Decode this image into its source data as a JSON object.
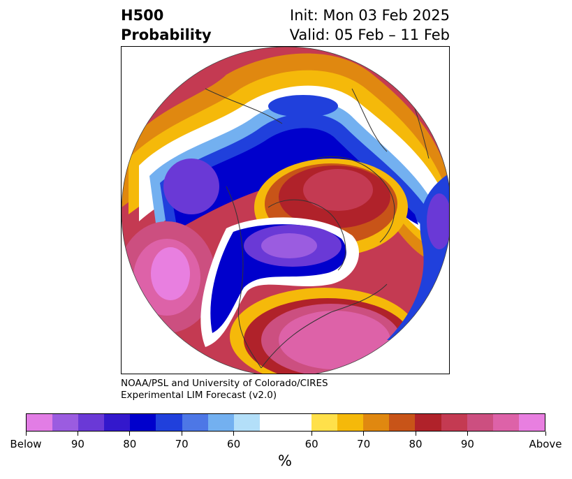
{
  "title": {
    "variable": "H500",
    "product": "Probability",
    "init": "Init: Mon 03 Feb 2025",
    "valid": "Valid: 05 Feb – 11 Feb"
  },
  "credit": {
    "line1": "NOAA/PSL and University of Colorado/CIRES",
    "line2": "Experimental LIM Forecast (v2.0)"
  },
  "colorbar": {
    "unit": "%",
    "below_colors": [
      "#e27de5",
      "#9b5ce0",
      "#6a39d6",
      "#3318cc",
      "#0000cc",
      "#2040dc",
      "#4d77e6",
      "#73b0f0",
      "#b3dff9"
    ],
    "neutral_color": "#ffffff",
    "above_colors": [
      "#ffe04a",
      "#f5b90a",
      "#e08810",
      "#c85418",
      "#b0222a",
      "#c43a52",
      "#cc4f80",
      "#dd62a8",
      "#e87fe0"
    ],
    "tick_labels": [
      "Below",
      "90",
      "80",
      "70",
      "60",
      "60",
      "70",
      "80",
      "90",
      "Above"
    ]
  }
}
